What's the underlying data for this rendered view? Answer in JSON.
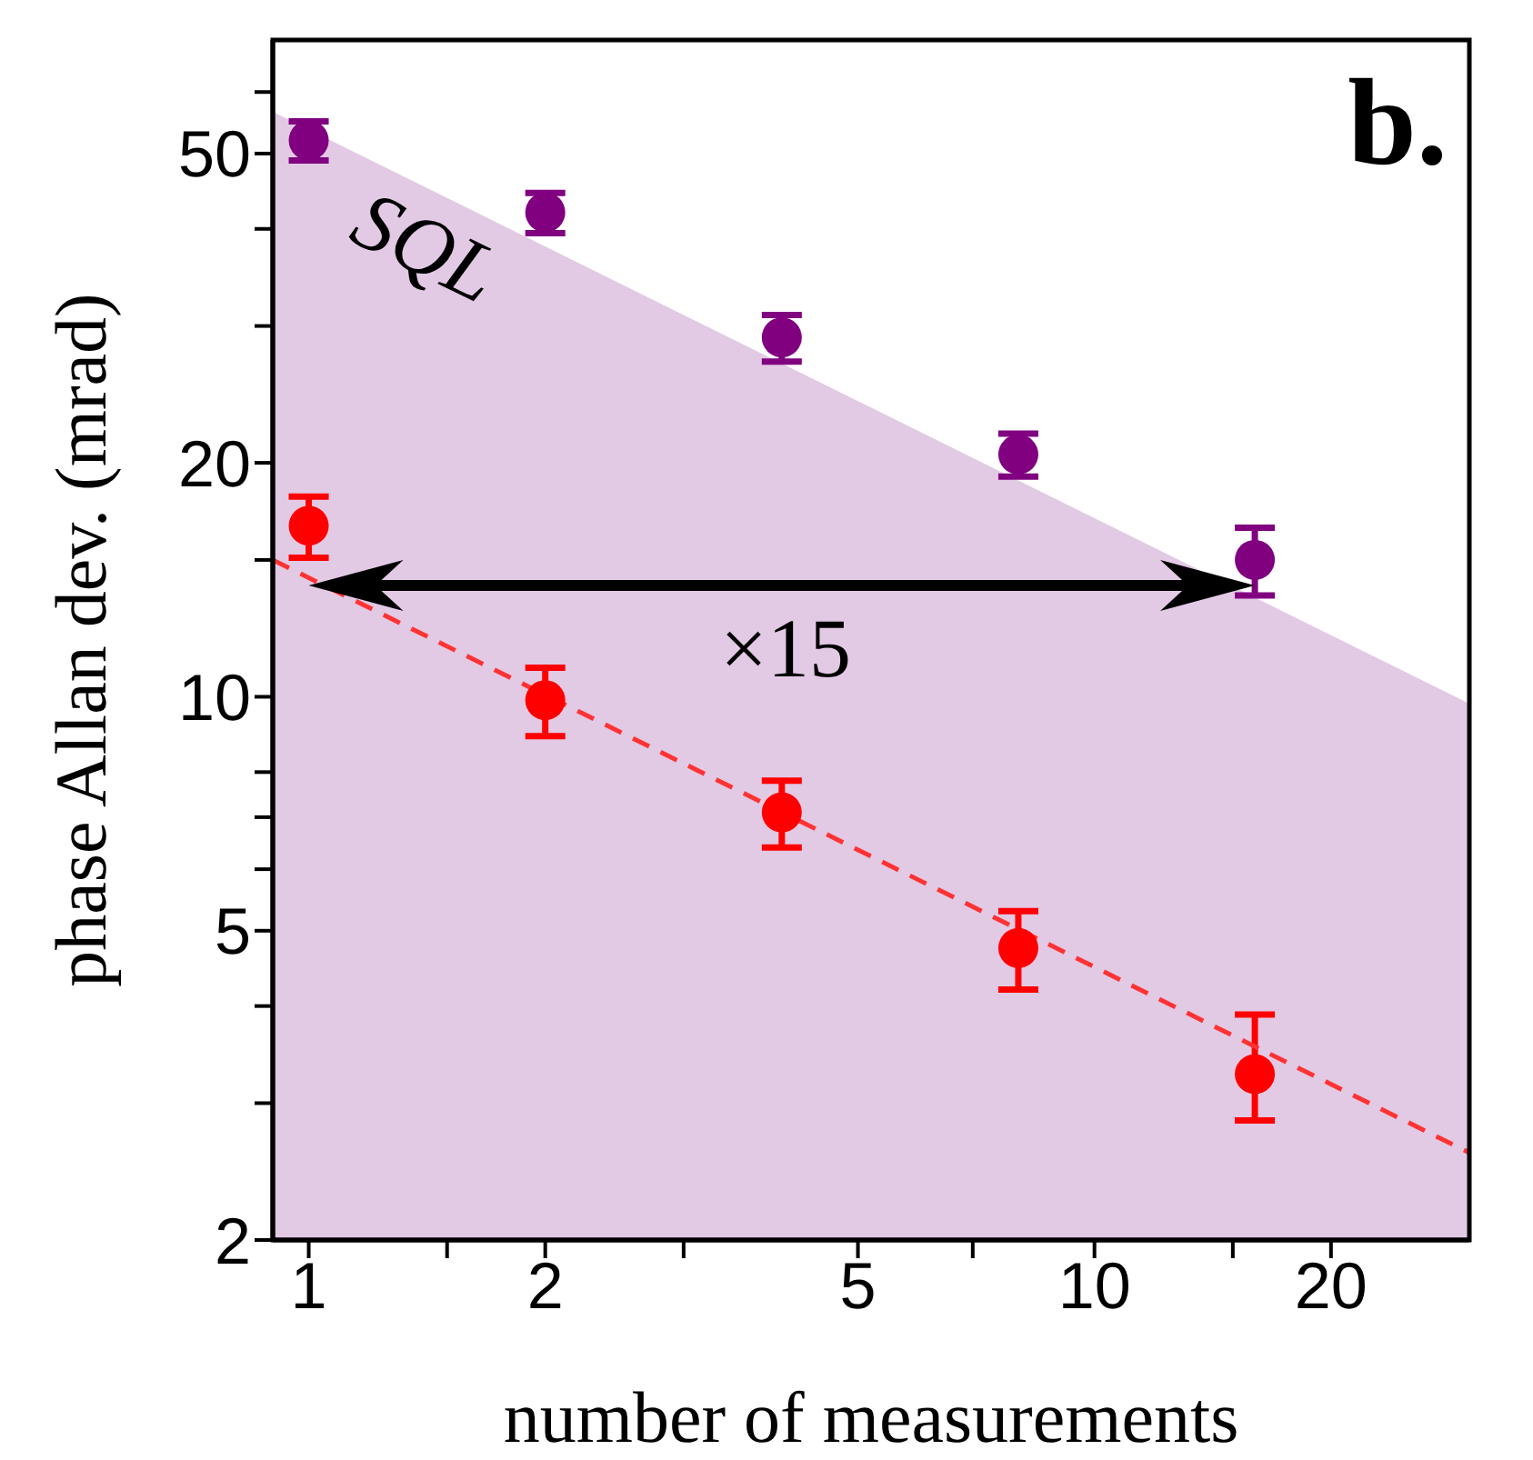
{
  "chart_data": {
    "type": "scatter",
    "xlabel": "number of measurements",
    "ylabel": "phase Allan dev. (mrad)",
    "log": "xy",
    "grid": false,
    "legend": false,
    "marker": "circle",
    "xlim": [
      0.9,
      30
    ],
    "xticks": [
      1,
      {
        "value": 1.5,
        "label": null
      },
      2,
      {
        "value": 3,
        "label": null
      },
      5,
      {
        "value": 7,
        "label": null
      },
      10,
      {
        "value": 15,
        "label": null
      },
      20
    ],
    "ylim": [
      2,
      70
    ],
    "yticks": [
      2,
      {
        "value": 3,
        "label": null
      },
      {
        "value": 4,
        "label": null
      },
      5,
      {
        "value": 6,
        "label": null
      },
      {
        "value": 7,
        "label": null
      },
      {
        "value": 8,
        "label": null
      },
      10,
      {
        "value": 15,
        "label": null
      },
      20,
      {
        "value": 30,
        "label": null
      },
      {
        "value": 40,
        "label": null
      },
      50,
      {
        "value": 60,
        "label": null
      }
    ],
    "series": [
      {
        "type": "area",
        "marker": "none",
        "color": "#e2c9e4",
        "x": [
          0.9,
          30
        ],
        "values": [
          56.6,
          9.8
        ]
      },
      {
        "color": "#800080",
        "x": [
          1,
          2,
          4,
          8,
          16
        ],
        "values": [
          52,
          42,
          29,
          20.5,
          15
        ],
        "errors": [
          3,
          2.5,
          2,
          1.3,
          1.5
        ]
      },
      {
        "color": "#ff0000",
        "x": [
          1,
          2,
          4,
          8,
          16
        ],
        "values": [
          16.6,
          9.9,
          7.1,
          4.75,
          3.27
        ],
        "errors": [
          1.5,
          1,
          0.7,
          0.55,
          [
            2.85,
            3.9
          ]
        ]
      },
      {
        "type": "line",
        "color": "#ff3333",
        "line_style": "dashed",
        "marker": "none",
        "x": [
          0.9,
          30
        ],
        "values": [
          15,
          2.59
        ]
      }
    ],
    "annotations": [
      "b.",
      "SQL",
      "×15"
    ]
  }
}
